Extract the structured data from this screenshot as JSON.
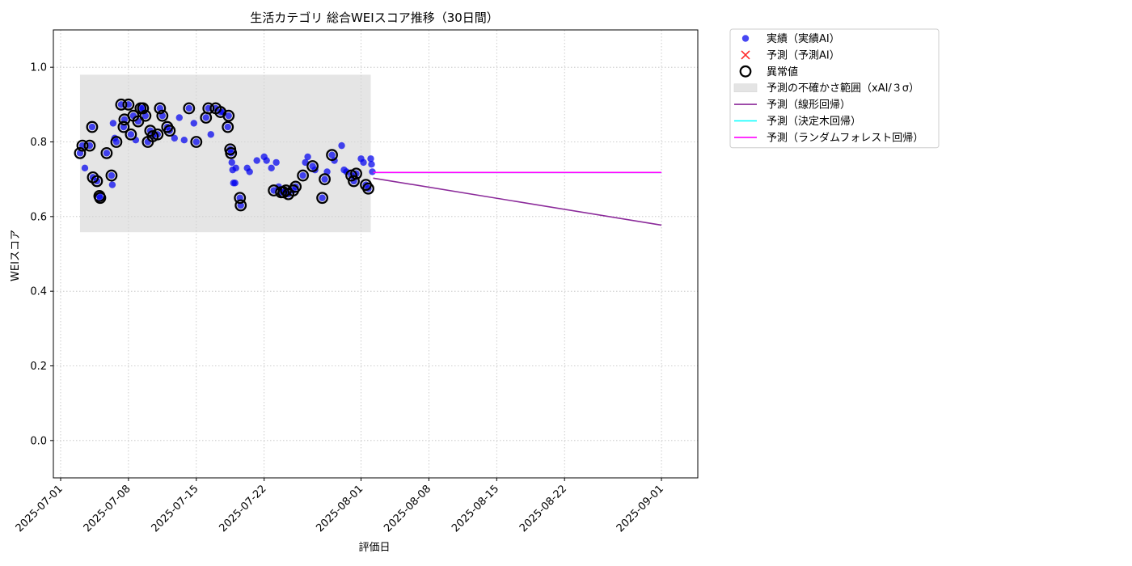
{
  "chart_data": {
    "type": "scatter",
    "title": "生活カテゴリ 総合WEIスコア推移（30日間）",
    "xlabel": "評価日",
    "ylabel": "WEIスコア",
    "xlim": [
      "2025-06-30T06:00",
      "2025-09-04T18:00"
    ],
    "ylim": [
      -0.1,
      1.1
    ],
    "x_ticks": [
      "2025-07-01",
      "2025-07-08",
      "2025-07-15",
      "2025-07-22",
      "2025-08-01",
      "2025-08-08",
      "2025-08-15",
      "2025-08-22",
      "2025-09-01"
    ],
    "y_ticks": [
      0.0,
      0.2,
      0.4,
      0.6,
      0.8,
      1.0
    ],
    "grid": true,
    "legend_position": "outside-top-right",
    "colors": {
      "actual": "#0000ee",
      "prediction": "#ff2a2a",
      "anomaly_edge": "#000000",
      "band": "#d3d3d3",
      "linear": "#8b2a9a",
      "tree": "#00ffff",
      "forest": "#ff00ff"
    },
    "legend": [
      {
        "key": "actual",
        "label": "実績（実績AI）",
        "marker": "dot"
      },
      {
        "key": "prediction",
        "label": "予測（予測AI）",
        "marker": "cross"
      },
      {
        "key": "anomaly",
        "label": "異常値",
        "marker": "ring"
      },
      {
        "key": "band",
        "label": "予測の不確かさ範囲（xAI/３σ）",
        "marker": "patch"
      },
      {
        "key": "linear",
        "label": "予測（線形回帰）",
        "marker": "line"
      },
      {
        "key": "tree",
        "label": "予測（決定木回帰）",
        "marker": "line"
      },
      {
        "key": "forest",
        "label": "予測（ランダムフォレスト回帰）",
        "marker": "line"
      }
    ],
    "uncertainty_band": {
      "x_start": "2025-07-03T00:00",
      "x_end": "2025-08-02T00:00",
      "y_low": 0.558,
      "y_high": 0.98
    },
    "actual": [
      [
        "2025-07-03T00:00",
        0.77
      ],
      [
        "2025-07-03T06:00",
        0.79
      ],
      [
        "2025-07-03T12:00",
        0.73
      ],
      [
        "2025-07-04T00:00",
        0.79
      ],
      [
        "2025-07-04T06:00",
        0.84
      ],
      [
        "2025-07-04T08:00",
        0.705
      ],
      [
        "2025-07-04T18:00",
        0.695
      ],
      [
        "2025-07-05T00:00",
        0.655
      ],
      [
        "2025-07-05T02:00",
        0.65
      ],
      [
        "2025-07-05T18:00",
        0.77
      ],
      [
        "2025-07-06T06:00",
        0.71
      ],
      [
        "2025-07-06T08:00",
        0.685
      ],
      [
        "2025-07-06T10:00",
        0.85
      ],
      [
        "2025-07-06T14:00",
        0.81
      ],
      [
        "2025-07-06T18:00",
        0.8
      ],
      [
        "2025-07-07T06:00",
        0.9
      ],
      [
        "2025-07-07T12:00",
        0.84
      ],
      [
        "2025-07-07T14:00",
        0.86
      ],
      [
        "2025-07-08T00:00",
        0.9
      ],
      [
        "2025-07-08T06:00",
        0.82
      ],
      [
        "2025-07-08T12:00",
        0.87
      ],
      [
        "2025-07-08T18:00",
        0.805
      ],
      [
        "2025-07-09T00:00",
        0.855
      ],
      [
        "2025-07-09T06:00",
        0.89
      ],
      [
        "2025-07-09T12:00",
        0.89
      ],
      [
        "2025-07-09T18:00",
        0.87
      ],
      [
        "2025-07-10T00:00",
        0.8
      ],
      [
        "2025-07-10T06:00",
        0.83
      ],
      [
        "2025-07-10T12:00",
        0.815
      ],
      [
        "2025-07-11T00:00",
        0.82
      ],
      [
        "2025-07-11T06:00",
        0.89
      ],
      [
        "2025-07-11T12:00",
        0.87
      ],
      [
        "2025-07-12T00:00",
        0.84
      ],
      [
        "2025-07-12T06:00",
        0.83
      ],
      [
        "2025-07-12T18:00",
        0.81
      ],
      [
        "2025-07-13T06:00",
        0.865
      ],
      [
        "2025-07-13T18:00",
        0.805
      ],
      [
        "2025-07-14T06:00",
        0.89
      ],
      [
        "2025-07-14T18:00",
        0.85
      ],
      [
        "2025-07-15T00:00",
        0.8
      ],
      [
        "2025-07-16T00:00",
        0.865
      ],
      [
        "2025-07-16T06:00",
        0.89
      ],
      [
        "2025-07-16T12:00",
        0.82
      ],
      [
        "2025-07-17T00:00",
        0.89
      ],
      [
        "2025-07-17T12:00",
        0.88
      ],
      [
        "2025-07-17T18:00",
        0.88
      ],
      [
        "2025-07-18T06:00",
        0.84
      ],
      [
        "2025-07-18T08:00",
        0.87
      ],
      [
        "2025-07-18T12:00",
        0.78
      ],
      [
        "2025-07-18T14:00",
        0.77
      ],
      [
        "2025-07-18T16:00",
        0.745
      ],
      [
        "2025-07-18T18:00",
        0.725
      ],
      [
        "2025-07-18T20:00",
        0.69
      ],
      [
        "2025-07-19T00:00",
        0.69
      ],
      [
        "2025-07-19T02:00",
        0.73
      ],
      [
        "2025-07-19T12:00",
        0.65
      ],
      [
        "2025-07-19T14:00",
        0.63
      ],
      [
        "2025-07-20T06:00",
        0.73
      ],
      [
        "2025-07-20T12:00",
        0.72
      ],
      [
        "2025-07-21T06:00",
        0.75
      ],
      [
        "2025-07-22T00:00",
        0.76
      ],
      [
        "2025-07-22T06:00",
        0.75
      ],
      [
        "2025-07-22T18:00",
        0.73
      ],
      [
        "2025-07-23T00:00",
        0.67
      ],
      [
        "2025-07-23T06:00",
        0.745
      ],
      [
        "2025-07-23T12:00",
        0.68
      ],
      [
        "2025-07-23T18:00",
        0.665
      ],
      [
        "2025-07-24T00:00",
        0.665
      ],
      [
        "2025-07-24T06:00",
        0.67
      ],
      [
        "2025-07-24T12:00",
        0.66
      ],
      [
        "2025-07-25T00:00",
        0.67
      ],
      [
        "2025-07-25T06:00",
        0.68
      ],
      [
        "2025-07-26T00:00",
        0.71
      ],
      [
        "2025-07-26T06:00",
        0.745
      ],
      [
        "2025-07-26T12:00",
        0.76
      ],
      [
        "2025-07-27T00:00",
        0.735
      ],
      [
        "2025-07-27T06:00",
        0.725
      ],
      [
        "2025-07-28T00:00",
        0.65
      ],
      [
        "2025-07-28T06:00",
        0.7
      ],
      [
        "2025-07-28T12:00",
        0.72
      ],
      [
        "2025-07-29T00:00",
        0.765
      ],
      [
        "2025-07-29T06:00",
        0.75
      ],
      [
        "2025-07-30T00:00",
        0.79
      ],
      [
        "2025-07-30T06:00",
        0.725
      ],
      [
        "2025-07-30T12:00",
        0.72
      ],
      [
        "2025-07-31T00:00",
        0.71
      ],
      [
        "2025-07-31T06:00",
        0.695
      ],
      [
        "2025-07-31T12:00",
        0.715
      ],
      [
        "2025-08-01T00:00",
        0.755
      ],
      [
        "2025-08-01T06:00",
        0.745
      ],
      [
        "2025-08-01T12:00",
        0.685
      ],
      [
        "2025-08-01T18:00",
        0.675
      ],
      [
        "2025-08-02T00:00",
        0.755
      ],
      [
        "2025-08-02T02:00",
        0.74
      ],
      [
        "2025-08-02T04:00",
        0.72
      ]
    ],
    "anomalies": [
      [
        "2025-07-03T00:00",
        0.77
      ],
      [
        "2025-07-03T06:00",
        0.79
      ],
      [
        "2025-07-04T00:00",
        0.79
      ],
      [
        "2025-07-04T06:00",
        0.84
      ],
      [
        "2025-07-04T08:00",
        0.705
      ],
      [
        "2025-07-04T18:00",
        0.695
      ],
      [
        "2025-07-05T00:00",
        0.655
      ],
      [
        "2025-07-05T02:00",
        0.65
      ],
      [
        "2025-07-05T18:00",
        0.77
      ],
      [
        "2025-07-06T06:00",
        0.71
      ],
      [
        "2025-07-06T18:00",
        0.8
      ],
      [
        "2025-07-07T06:00",
        0.9
      ],
      [
        "2025-07-07T12:00",
        0.84
      ],
      [
        "2025-07-07T14:00",
        0.86
      ],
      [
        "2025-07-08T00:00",
        0.9
      ],
      [
        "2025-07-08T06:00",
        0.82
      ],
      [
        "2025-07-08T12:00",
        0.87
      ],
      [
        "2025-07-09T00:00",
        0.855
      ],
      [
        "2025-07-09T06:00",
        0.89
      ],
      [
        "2025-07-09T12:00",
        0.89
      ],
      [
        "2025-07-09T18:00",
        0.87
      ],
      [
        "2025-07-10T00:00",
        0.8
      ],
      [
        "2025-07-10T06:00",
        0.83
      ],
      [
        "2025-07-10T12:00",
        0.815
      ],
      [
        "2025-07-11T00:00",
        0.82
      ],
      [
        "2025-07-11T06:00",
        0.89
      ],
      [
        "2025-07-11T12:00",
        0.87
      ],
      [
        "2025-07-12T00:00",
        0.84
      ],
      [
        "2025-07-12T06:00",
        0.83
      ],
      [
        "2025-07-14T06:00",
        0.89
      ],
      [
        "2025-07-15T00:00",
        0.8
      ],
      [
        "2025-07-16T00:00",
        0.865
      ],
      [
        "2025-07-16T06:00",
        0.89
      ],
      [
        "2025-07-17T00:00",
        0.89
      ],
      [
        "2025-07-17T12:00",
        0.88
      ],
      [
        "2025-07-18T06:00",
        0.84
      ],
      [
        "2025-07-18T08:00",
        0.87
      ],
      [
        "2025-07-18T12:00",
        0.78
      ],
      [
        "2025-07-18T14:00",
        0.77
      ],
      [
        "2025-07-19T12:00",
        0.65
      ],
      [
        "2025-07-19T14:00",
        0.63
      ],
      [
        "2025-07-23T00:00",
        0.67
      ],
      [
        "2025-07-23T18:00",
        0.665
      ],
      [
        "2025-07-24T00:00",
        0.665
      ],
      [
        "2025-07-24T06:00",
        0.67
      ],
      [
        "2025-07-24T12:00",
        0.66
      ],
      [
        "2025-07-25T00:00",
        0.67
      ],
      [
        "2025-07-25T06:00",
        0.68
      ],
      [
        "2025-07-26T00:00",
        0.71
      ],
      [
        "2025-07-27T00:00",
        0.735
      ],
      [
        "2025-07-28T00:00",
        0.65
      ],
      [
        "2025-07-28T06:00",
        0.7
      ],
      [
        "2025-07-29T00:00",
        0.765
      ],
      [
        "2025-07-31T00:00",
        0.71
      ],
      [
        "2025-07-31T06:00",
        0.695
      ],
      [
        "2025-07-31T12:00",
        0.715
      ],
      [
        "2025-08-01T12:00",
        0.685
      ],
      [
        "2025-08-01T18:00",
        0.675
      ]
    ],
    "predictions": [],
    "trend_lines": [
      {
        "key": "linear",
        "points": [
          [
            "2025-08-02T06:00",
            0.703
          ],
          [
            "2025-09-01T00:00",
            0.577
          ]
        ]
      },
      {
        "key": "tree",
        "points": [
          [
            "2025-08-02T06:00",
            0.718
          ],
          [
            "2025-09-01T00:00",
            0.718
          ]
        ]
      },
      {
        "key": "forest",
        "points": [
          [
            "2025-08-02T06:00",
            0.718
          ],
          [
            "2025-09-01T00:00",
            0.718
          ]
        ]
      }
    ]
  }
}
